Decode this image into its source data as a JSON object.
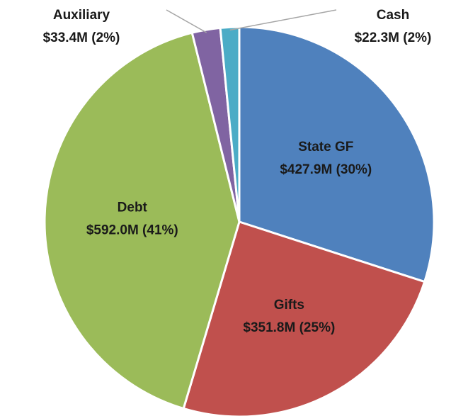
{
  "chart_data": {
    "type": "pie",
    "categories": [
      "State GF",
      "Gifts",
      "Debt",
      "Auxiliary",
      "Cash"
    ],
    "values": [
      427.9,
      351.8,
      592.0,
      33.4,
      22.3
    ],
    "value_labels": [
      "$427.9M (30%)",
      "$351.8M (25%)",
      "$592.0M (41%)",
      "$33.4M (2%)",
      "$22.3M (2%)"
    ],
    "colors": [
      "#4f81bd",
      "#c0504d",
      "#9bbb59",
      "#8064a2",
      "#4bacc6"
    ]
  }
}
